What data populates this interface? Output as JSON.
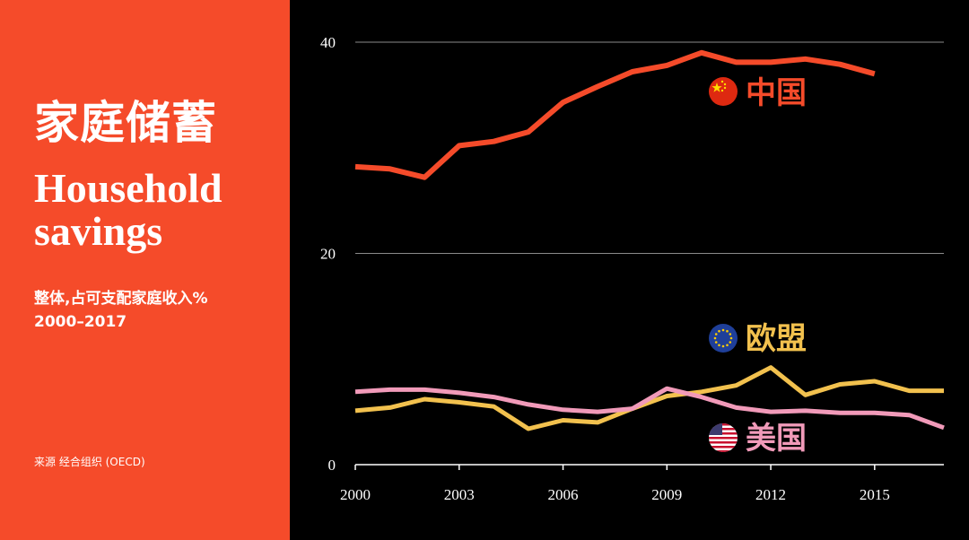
{
  "panel": {
    "title_zh": "家庭储蓄",
    "title_en": "Household savings",
    "subtitle_line1": "整体,占可支配家庭收入%",
    "subtitle_line2": "2000–2017",
    "source": "来源  经合组织 (OECD)",
    "accent_color": "#f54b2a"
  },
  "chart_data": {
    "type": "line",
    "title": "",
    "xlabel": "",
    "ylabel": "",
    "xlim": [
      2000,
      2017
    ],
    "ylim": [
      0,
      40
    ],
    "x_ticks": [
      2000,
      2003,
      2006,
      2009,
      2012,
      2015
    ],
    "y_ticks": [
      0,
      20,
      40
    ],
    "grid": "horizontal",
    "x": [
      2000,
      2001,
      2002,
      2003,
      2004,
      2005,
      2006,
      2007,
      2008,
      2009,
      2010,
      2011,
      2012,
      2013,
      2014,
      2015,
      2016,
      2017
    ],
    "series": [
      {
        "name": "中国",
        "flag_icon": "china-flag-icon",
        "color": "#f54b2a",
        "x": [
          2000,
          2001,
          2002,
          2003,
          2004,
          2005,
          2006,
          2007,
          2008,
          2009,
          2010,
          2011,
          2012,
          2013,
          2014,
          2015
        ],
        "values": [
          28.2,
          28.0,
          27.2,
          30.2,
          30.6,
          31.5,
          34.3,
          35.8,
          37.2,
          37.8,
          39.0,
          38.1,
          38.1,
          38.4,
          37.9,
          37.0
        ]
      },
      {
        "name": "欧盟",
        "flag_icon": "eu-flag-icon",
        "color": "#f2c14e",
        "values": [
          5.1,
          5.4,
          6.2,
          5.9,
          5.5,
          3.4,
          4.2,
          4.0,
          5.3,
          6.5,
          6.9,
          7.5,
          9.2,
          6.6,
          7.6,
          7.9,
          7.0,
          7.0
        ]
      },
      {
        "name": "美国",
        "flag_icon": "us-flag-icon",
        "color": "#f19ab9",
        "values": [
          6.9,
          7.1,
          7.1,
          6.8,
          6.4,
          5.7,
          5.2,
          5.0,
          5.3,
          7.2,
          6.4,
          5.4,
          5.0,
          5.1,
          4.9,
          4.9,
          4.7,
          3.5
        ]
      }
    ]
  }
}
